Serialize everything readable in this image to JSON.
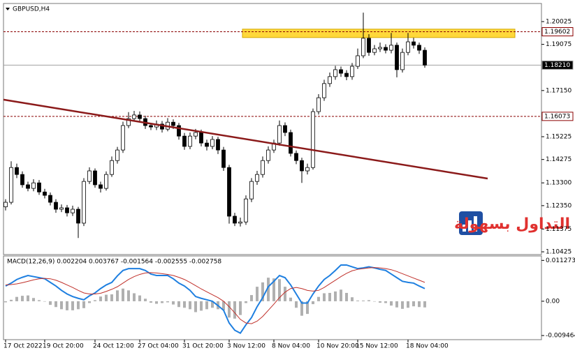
{
  "chart_data": [
    {
      "type": "candlestick",
      "title": "GBPUSD,H4",
      "watermark": "التداول بسهولة",
      "categories": [
        "17 Oct 2022",
        null,
        null,
        null,
        null,
        null,
        null,
        "19 Oct 20:00",
        null,
        null,
        null,
        null,
        null,
        null,
        null,
        null,
        "24 Oct 12:00",
        null,
        null,
        null,
        null,
        null,
        null,
        null,
        "27 Oct 04:00",
        null,
        null,
        null,
        null,
        null,
        null,
        null,
        "31 Oct 20:00",
        null,
        null,
        null,
        null,
        null,
        null,
        null,
        "3 Nov 12:00",
        null,
        null,
        null,
        null,
        null,
        null,
        null,
        "8 Nov 04:00",
        null,
        null,
        null,
        null,
        null,
        null,
        null,
        "10 Nov 20:00",
        null,
        null,
        null,
        null,
        null,
        null,
        "15 Nov 12:00",
        null,
        null,
        null,
        null,
        null,
        null,
        null,
        null,
        "18 Nov 04:00",
        null,
        null,
        null
      ],
      "open": [
        1.123,
        1.1249,
        1.1394,
        1.1365,
        1.1322,
        1.1307,
        1.133,
        1.1292,
        1.1278,
        1.1249,
        1.122,
        1.1226,
        1.1205,
        1.122,
        1.1162,
        1.1336,
        1.138,
        1.1322,
        1.1307,
        1.1365,
        1.1423,
        1.1467,
        1.1569,
        1.1598,
        1.1613,
        1.1598,
        1.1569,
        1.1563,
        1.1575,
        1.1554,
        1.1583,
        1.1569,
        1.1525,
        1.1482,
        1.1525,
        1.154,
        1.1496,
        1.1482,
        1.1511,
        1.1467,
        1.1394,
        1.1191,
        1.1162,
        1.1167,
        1.1263,
        1.1336,
        1.1365,
        1.1423,
        1.1467,
        1.1496,
        1.1569,
        1.154,
        1.1453,
        1.1423,
        1.138,
        1.1394,
        1.1627,
        1.1685,
        1.1744,
        1.1773,
        1.1802,
        1.1787,
        1.1773,
        1.1816,
        1.186,
        1.1933,
        1.1874,
        1.1889,
        1.1895,
        1.1883,
        1.1904,
        1.1802,
        1.1874,
        1.1918,
        1.1904,
        1.1883
      ],
      "high": [
        1.1262,
        1.142,
        1.141,
        1.1378,
        1.1335,
        1.1345,
        1.1342,
        1.1305,
        1.129,
        1.1262,
        1.124,
        1.1238,
        1.1235,
        1.123,
        1.135,
        1.1395,
        1.139,
        1.1335,
        1.1378,
        1.144,
        1.148,
        1.1585,
        1.1625,
        1.163,
        1.1628,
        1.161,
        1.158,
        1.159,
        1.1588,
        1.16,
        1.1595,
        1.158,
        1.1538,
        1.154,
        1.1555,
        1.1552,
        1.151,
        1.1525,
        1.1522,
        1.148,
        1.1405,
        1.1205,
        1.1185,
        1.1278,
        1.135,
        1.138,
        1.144,
        1.1482,
        1.151,
        1.159,
        1.1582,
        1.1552,
        1.1465,
        1.1435,
        1.141,
        1.164,
        1.17,
        1.176,
        1.179,
        1.1818,
        1.1815,
        1.18,
        1.183,
        1.189,
        1.204,
        1.195,
        1.1905,
        1.1915,
        1.1908,
        1.1955,
        1.1915,
        1.189,
        1.1955,
        1.1935,
        1.1915,
        1.1895
      ],
      "low": [
        1.1215,
        1.124,
        1.135,
        1.131,
        1.1295,
        1.1295,
        1.128,
        1.1265,
        1.1236,
        1.1205,
        1.1208,
        1.119,
        1.1192,
        1.11,
        1.115,
        1.1325,
        1.131,
        1.129,
        1.1298,
        1.1355,
        1.141,
        1.1455,
        1.1558,
        1.1585,
        1.1585,
        1.1555,
        1.155,
        1.155,
        1.154,
        1.1545,
        1.1555,
        1.151,
        1.1468,
        1.147,
        1.1512,
        1.1482,
        1.1465,
        1.147,
        1.145,
        1.138,
        1.116,
        1.115,
        1.1148,
        1.1155,
        1.125,
        1.1322,
        1.1352,
        1.141,
        1.1455,
        1.1485,
        1.1525,
        1.144,
        1.1408,
        1.133,
        1.1365,
        1.1385,
        1.1615,
        1.1672,
        1.173,
        1.176,
        1.1772,
        1.1758,
        1.176,
        1.1805,
        1.185,
        1.186,
        1.1862,
        1.1876,
        1.187,
        1.187,
        1.177,
        1.179,
        1.1862,
        1.189,
        1.1868,
        1.181
      ],
      "close": [
        1.1249,
        1.1394,
        1.1365,
        1.1322,
        1.1307,
        1.133,
        1.1292,
        1.1278,
        1.1249,
        1.122,
        1.1226,
        1.1205,
        1.122,
        1.1162,
        1.1336,
        1.138,
        1.1322,
        1.1307,
        1.1365,
        1.1423,
        1.1467,
        1.1569,
        1.1598,
        1.1613,
        1.1598,
        1.1569,
        1.1563,
        1.1575,
        1.1554,
        1.1583,
        1.1569,
        1.1525,
        1.1482,
        1.1525,
        1.154,
        1.1496,
        1.1482,
        1.1511,
        1.1467,
        1.1394,
        1.1191,
        1.1162,
        1.1167,
        1.1263,
        1.1336,
        1.1365,
        1.1423,
        1.1467,
        1.1496,
        1.1569,
        1.154,
        1.1453,
        1.1423,
        1.138,
        1.1394,
        1.1627,
        1.1685,
        1.1744,
        1.1773,
        1.1802,
        1.1787,
        1.1773,
        1.1816,
        1.186,
        1.1933,
        1.1874,
        1.1889,
        1.1895,
        1.1883,
        1.1904,
        1.1802,
        1.1874,
        1.1918,
        1.1904,
        1.1883,
        1.1821
      ],
      "up_color": "#ffffff",
      "down_color": "#000000",
      "ylim": [
        1.1031,
        1.2078
      ],
      "yticks": [
        1.20025,
        1.19075,
        {
          "value": 1.1715,
          "label": "1.17150"
        },
        1.15225,
        1.14275,
        {
          "value": 1.133,
          "label": "1.13300"
        },
        {
          "value": 1.1235,
          "label": "1.12350"
        },
        1.11375,
        1.10425
      ],
      "levels": [
        {
          "value": 1.19602,
          "color": "#8b0000"
        },
        {
          "value": 1.16073,
          "color": "#8b0000"
        },
        {
          "value": 1.1821,
          "label": "1.18210",
          "color": "#a0a0a0"
        }
      ],
      "zone": [
        1.1936,
        1.1971
      ],
      "zone_color": "#ffd83a",
      "trendline": [
        1.1677,
        1.1348
      ],
      "trendline_color": "#8b1a1a"
    },
    {
      "type": "macd",
      "label": "MACD(12,26,9) 0.002204 0.003767 -0.001564 -0.002555 -0.002758",
      "ylim": [
        -0.0106,
        0.0123
      ],
      "yticks": [
        0.011273,
        {
          "value": 0,
          "label": "0.00"
        },
        -0.009464
      ],
      "histogram": {
        "color": "#b0b0b0",
        "values": [
          -0.0003,
          0.0004,
          0.0012,
          0.0015,
          0.0016,
          0.0009,
          0.0003,
          -0.0001,
          -0.001,
          -0.0016,
          -0.0022,
          -0.0025,
          -0.0025,
          -0.0022,
          -0.0019,
          -0.0005,
          0.0003,
          0.0013,
          0.0018,
          0.0019,
          0.003,
          0.0035,
          0.003,
          0.0022,
          0.0016,
          0.0007,
          -0.0004,
          -0.0007,
          -0.0005,
          -0.0003,
          -0.0009,
          -0.0016,
          -0.0018,
          -0.0022,
          -0.003,
          -0.0026,
          -0.0022,
          -0.0018,
          -0.0022,
          -0.0025,
          -0.0045,
          -0.0048,
          -0.0038,
          -0.0005,
          0.0017,
          0.004,
          0.0052,
          0.0065,
          0.0063,
          0.0061,
          0.004,
          0.001,
          -0.0018,
          -0.004,
          -0.0035,
          -0.0008,
          0.0012,
          0.0022,
          0.0023,
          0.0027,
          0.0032,
          0.0023,
          0.0011,
          0.0002,
          0.0002,
          0.0003,
          -0.0001,
          -0.0004,
          -0.0005,
          -0.0012,
          -0.0017,
          -0.0021,
          -0.0018,
          -0.0014,
          -0.0016,
          -0.0017
        ]
      },
      "series": [
        {
          "color": "#1e7fe0",
          "values": [
            0.0042,
            0.005,
            0.006,
            0.0066,
            0.0071,
            0.0068,
            0.0065,
            0.0062,
            0.0052,
            0.0042,
            0.003,
            0.002,
            0.0013,
            0.0008,
            0.0004,
            0.0015,
            0.0023,
            0.0035,
            0.0045,
            0.0052,
            0.007,
            0.0085,
            0.009,
            0.009,
            0.009,
            0.0085,
            0.0075,
            0.0071,
            0.0071,
            0.0071,
            0.0062,
            0.005,
            0.0042,
            0.003,
            0.0013,
            0.0008,
            0.0004,
            0.0,
            -0.0012,
            -0.0025,
            -0.006,
            -0.008,
            -0.0088,
            -0.0065,
            -0.0045,
            -0.0015,
            0.001,
            0.004,
            0.0055,
            0.0071,
            0.0065,
            0.0045,
            0.002,
            -0.0005,
            -0.0005,
            0.002,
            0.0042,
            0.006,
            0.0071,
            0.0085,
            0.01,
            0.01,
            0.0095,
            0.009,
            0.0092,
            0.0095,
            0.0092,
            0.0088,
            0.0085,
            0.0075,
            0.0065,
            0.0055,
            0.0052,
            0.005,
            0.0042,
            0.0035
          ]
        },
        {
          "color": "#c0302a",
          "values": [
            0.0045,
            0.0046,
            0.0048,
            0.0051,
            0.0055,
            0.0059,
            0.0062,
            0.0063,
            0.0062,
            0.0058,
            0.0052,
            0.0045,
            0.0038,
            0.003,
            0.0023,
            0.002,
            0.002,
            0.0022,
            0.0027,
            0.0033,
            0.004,
            0.005,
            0.006,
            0.0068,
            0.0074,
            0.0078,
            0.0079,
            0.0078,
            0.0076,
            0.0074,
            0.0071,
            0.0066,
            0.006,
            0.0052,
            0.0043,
            0.0034,
            0.0026,
            0.0018,
            0.001,
            0.0,
            -0.0015,
            -0.0032,
            -0.005,
            -0.006,
            -0.0062,
            -0.0055,
            -0.0042,
            -0.0025,
            -0.0008,
            0.001,
            0.0025,
            0.0035,
            0.0038,
            0.0035,
            0.003,
            0.0028,
            0.003,
            0.0038,
            0.0048,
            0.0058,
            0.0068,
            0.0077,
            0.0084,
            0.0088,
            0.009,
            0.0092,
            0.0093,
            0.0092,
            0.009,
            0.0087,
            0.0082,
            0.0076,
            0.007,
            0.0064,
            0.0058,
            0.0052
          ]
        }
      ]
    }
  ]
}
